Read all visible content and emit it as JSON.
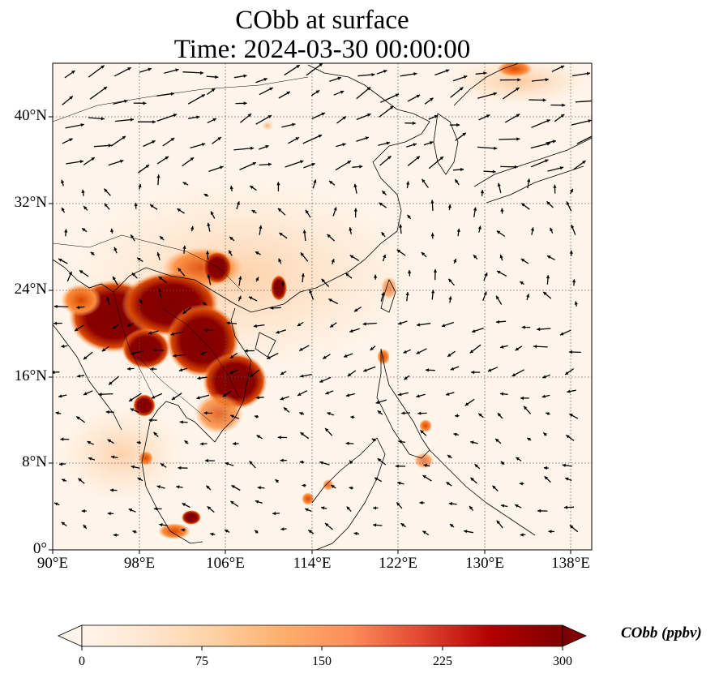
{
  "title_line1": "CObb at surface",
  "title_line2": "Time: 2024-03-30 00:00:00",
  "map": {
    "projection": "PlateCarree",
    "lon_range": [
      90,
      140
    ],
    "lat_range": [
      0,
      45
    ],
    "background_color": "#fff5eb",
    "gridlines": "dotted",
    "lat_ticks": [
      "0°",
      "8°N",
      "16°N",
      "24°N",
      "32°N",
      "40°N"
    ],
    "lon_ticks": [
      "90°E",
      "98°E",
      "106°E",
      "114°E",
      "122°E",
      "130°E",
      "138°E"
    ],
    "field_colormap": "OrRd",
    "wind_vectors": "quiver arrows (black)"
  },
  "colorbar": {
    "label": "CObb (ppbv)",
    "ticks": [
      "0",
      "75",
      "150",
      "225",
      "300"
    ],
    "range": [
      0,
      300
    ],
    "extend": "both",
    "colors": [
      "#fff5eb",
      "#fdd0a2",
      "#fdae6b",
      "#fd8d3c",
      "#f16913",
      "#d94801",
      "#a60b0b",
      "#7f0000"
    ]
  }
}
